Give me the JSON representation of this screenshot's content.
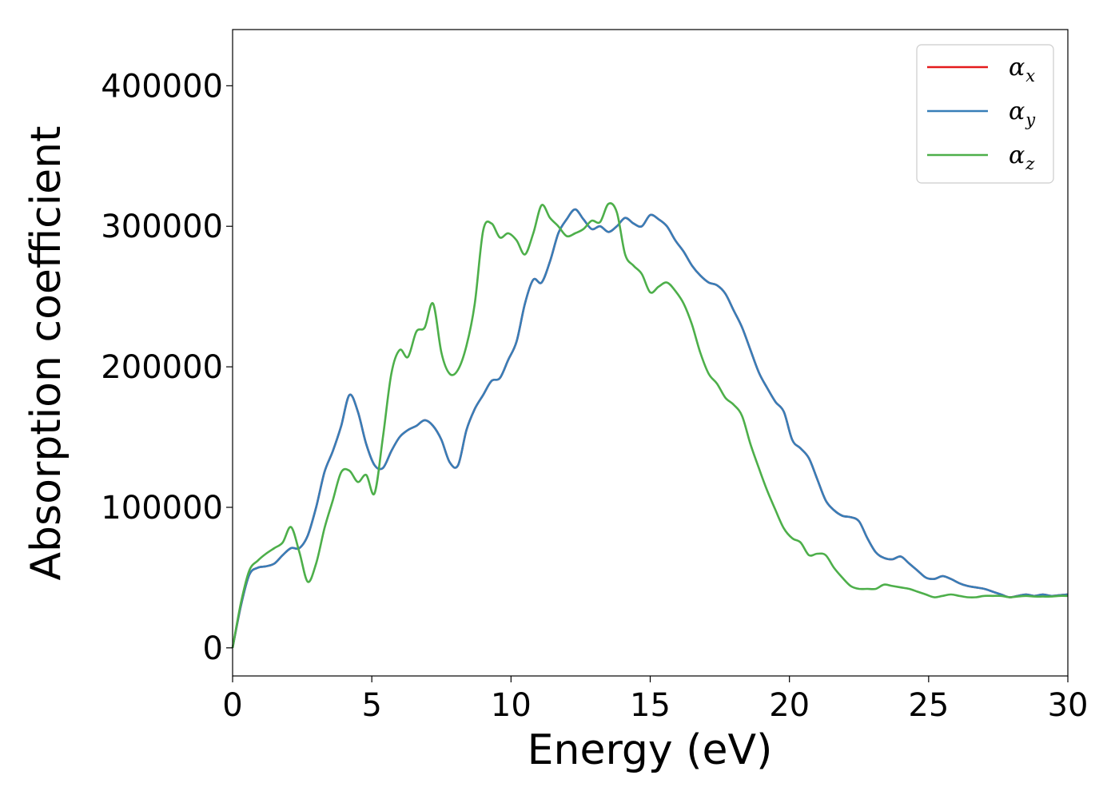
{
  "chart_data": {
    "type": "line",
    "xlabel": "Energy (eV)",
    "ylabel": "Absorption coefficient",
    "xlim": [
      0,
      30
    ],
    "ylim": [
      -20000,
      440000
    ],
    "xticks": [
      0,
      5,
      10,
      15,
      20,
      25,
      30
    ],
    "yticks": [
      0,
      100000,
      200000,
      300000,
      400000
    ],
    "x_tick_labels": [
      "0",
      "5",
      "10",
      "15",
      "20",
      "25",
      "30"
    ],
    "y_tick_labels": [
      "0",
      "100000",
      "200000",
      "300000",
      "400000"
    ],
    "grid": false,
    "legend_position": "top-right",
    "series": [
      {
        "name": "αx",
        "symbol": "α",
        "subscript": "x",
        "color": "#e41a1c",
        "x": [
          0,
          0.3,
          0.6,
          0.9,
          1.2,
          1.5,
          1.8,
          2.1,
          2.4,
          2.7,
          3.0,
          3.3,
          3.6,
          3.9,
          4.2,
          4.5,
          4.8,
          5.1,
          5.4,
          5.7,
          6.0,
          6.3,
          6.6,
          6.9,
          7.2,
          7.5,
          7.8,
          8.1,
          8.4,
          8.7,
          9.0,
          9.3,
          9.6,
          9.9,
          10.2,
          10.5,
          10.8,
          11.1,
          11.4,
          11.7,
          12.0,
          12.3,
          12.6,
          12.9,
          13.2,
          13.5,
          13.8,
          14.1,
          14.4,
          14.7,
          15.0,
          15.3,
          15.6,
          15.9,
          16.2,
          16.5,
          16.8,
          17.1,
          17.4,
          17.7,
          18.0,
          18.3,
          18.6,
          18.9,
          19.2,
          19.5,
          19.8,
          20.1,
          20.4,
          20.7,
          21.0,
          21.3,
          21.6,
          21.9,
          22.2,
          22.5,
          22.8,
          23.1,
          23.4,
          23.7,
          24.0,
          24.3,
          24.6,
          24.9,
          25.2,
          25.5,
          25.8,
          26.1,
          26.4,
          26.7,
          27.0,
          27.3,
          27.6,
          27.9,
          28.2,
          28.5,
          28.8,
          29.1,
          29.4,
          29.7,
          30.0
        ],
        "y": [
          0,
          30000,
          52000,
          57000,
          58000,
          60000,
          66000,
          71000,
          71000,
          80000,
          100000,
          125000,
          140000,
          158000,
          180000,
          168000,
          145000,
          130000,
          128000,
          140000,
          150000,
          155000,
          158000,
          162000,
          158000,
          148000,
          132000,
          130000,
          155000,
          170000,
          180000,
          190000,
          192000,
          205000,
          218000,
          245000,
          262000,
          260000,
          275000,
          295000,
          305000,
          312000,
          305000,
          298000,
          300000,
          296000,
          300000,
          306000,
          302000,
          300000,
          308000,
          305000,
          300000,
          290000,
          282000,
          272000,
          265000,
          260000,
          258000,
          252000,
          240000,
          228000,
          212000,
          196000,
          185000,
          175000,
          168000,
          148000,
          142000,
          135000,
          120000,
          105000,
          98000,
          94000,
          93000,
          90000,
          78000,
          68000,
          64000,
          63000,
          65000,
          60000,
          55000,
          50000,
          49000,
          51000,
          49000,
          46000,
          44000,
          43000,
          42000,
          40000,
          38000,
          36000,
          37000,
          38000,
          37000,
          38000,
          37000,
          37500,
          38000
        ]
      },
      {
        "name": "αy",
        "symbol": "α",
        "subscript": "y",
        "color": "#377eb8",
        "x": [
          0,
          0.3,
          0.6,
          0.9,
          1.2,
          1.5,
          1.8,
          2.1,
          2.4,
          2.7,
          3.0,
          3.3,
          3.6,
          3.9,
          4.2,
          4.5,
          4.8,
          5.1,
          5.4,
          5.7,
          6.0,
          6.3,
          6.6,
          6.9,
          7.2,
          7.5,
          7.8,
          8.1,
          8.4,
          8.7,
          9.0,
          9.3,
          9.6,
          9.9,
          10.2,
          10.5,
          10.8,
          11.1,
          11.4,
          11.7,
          12.0,
          12.3,
          12.6,
          12.9,
          13.2,
          13.5,
          13.8,
          14.1,
          14.4,
          14.7,
          15.0,
          15.3,
          15.6,
          15.9,
          16.2,
          16.5,
          16.8,
          17.1,
          17.4,
          17.7,
          18.0,
          18.3,
          18.6,
          18.9,
          19.2,
          19.5,
          19.8,
          20.1,
          20.4,
          20.7,
          21.0,
          21.3,
          21.6,
          21.9,
          22.2,
          22.5,
          22.8,
          23.1,
          23.4,
          23.7,
          24.0,
          24.3,
          24.6,
          24.9,
          25.2,
          25.5,
          25.8,
          26.1,
          26.4,
          26.7,
          27.0,
          27.3,
          27.6,
          27.9,
          28.2,
          28.5,
          28.8,
          29.1,
          29.4,
          29.7,
          30.0
        ],
        "y": [
          0,
          30000,
          52000,
          57000,
          58000,
          60000,
          66000,
          71000,
          71000,
          80000,
          100000,
          125000,
          140000,
          158000,
          180000,
          168000,
          145000,
          130000,
          128000,
          140000,
          150000,
          155000,
          158000,
          162000,
          158000,
          148000,
          132000,
          130000,
          155000,
          170000,
          180000,
          190000,
          192000,
          205000,
          218000,
          245000,
          262000,
          260000,
          275000,
          295000,
          305000,
          312000,
          305000,
          298000,
          300000,
          296000,
          300000,
          306000,
          302000,
          300000,
          308000,
          305000,
          300000,
          290000,
          282000,
          272000,
          265000,
          260000,
          258000,
          252000,
          240000,
          228000,
          212000,
          196000,
          185000,
          175000,
          168000,
          148000,
          142000,
          135000,
          120000,
          105000,
          98000,
          94000,
          93000,
          90000,
          78000,
          68000,
          64000,
          63000,
          65000,
          60000,
          55000,
          50000,
          49000,
          51000,
          49000,
          46000,
          44000,
          43000,
          42000,
          40000,
          38000,
          36000,
          37000,
          38000,
          37000,
          38000,
          37000,
          37500,
          38000
        ]
      },
      {
        "name": "αz",
        "symbol": "α",
        "subscript": "z",
        "color": "#4daf4a",
        "x": [
          0,
          0.3,
          0.6,
          0.9,
          1.2,
          1.5,
          1.8,
          2.1,
          2.4,
          2.7,
          3.0,
          3.3,
          3.6,
          3.9,
          4.2,
          4.5,
          4.8,
          5.1,
          5.4,
          5.7,
          6.0,
          6.3,
          6.6,
          6.9,
          7.2,
          7.5,
          7.8,
          8.1,
          8.4,
          8.7,
          9.0,
          9.3,
          9.6,
          9.9,
          10.2,
          10.5,
          10.8,
          11.1,
          11.4,
          11.7,
          12.0,
          12.3,
          12.6,
          12.9,
          13.2,
          13.5,
          13.8,
          14.1,
          14.4,
          14.7,
          15.0,
          15.3,
          15.6,
          15.9,
          16.2,
          16.5,
          16.8,
          17.1,
          17.4,
          17.7,
          18.0,
          18.3,
          18.6,
          18.9,
          19.2,
          19.5,
          19.8,
          20.1,
          20.4,
          20.7,
          21.0,
          21.3,
          21.6,
          21.9,
          22.2,
          22.5,
          22.8,
          23.1,
          23.4,
          23.7,
          24.0,
          24.3,
          24.6,
          24.9,
          25.2,
          25.5,
          25.8,
          26.1,
          26.4,
          26.7,
          27.0,
          27.3,
          27.6,
          27.9,
          28.2,
          28.5,
          28.8,
          29.1,
          29.4,
          29.7,
          30.0
        ],
        "y": [
          0,
          32000,
          55000,
          62000,
          67000,
          71000,
          75000,
          86000,
          68000,
          47000,
          60000,
          85000,
          105000,
          125000,
          126000,
          118000,
          123000,
          110000,
          150000,
          195000,
          212000,
          207000,
          225000,
          228000,
          245000,
          210000,
          195000,
          198000,
          215000,
          245000,
          297000,
          302000,
          292000,
          295000,
          290000,
          280000,
          295000,
          315000,
          306000,
          300000,
          293000,
          295000,
          298000,
          304000,
          303000,
          316000,
          310000,
          280000,
          272000,
          266000,
          253000,
          257000,
          260000,
          254000,
          245000,
          230000,
          210000,
          195000,
          188000,
          178000,
          173000,
          165000,
          145000,
          128000,
          112000,
          98000,
          85000,
          78000,
          75000,
          66000,
          67000,
          66000,
          57000,
          50000,
          44000,
          42000,
          42000,
          42000,
          45000,
          44000,
          43000,
          42000,
          40000,
          38000,
          36000,
          37000,
          38000,
          37000,
          36000,
          36000,
          37000,
          37000,
          37000,
          36000,
          36500,
          37000,
          36500,
          36500,
          36500,
          37000,
          37000
        ]
      }
    ]
  }
}
